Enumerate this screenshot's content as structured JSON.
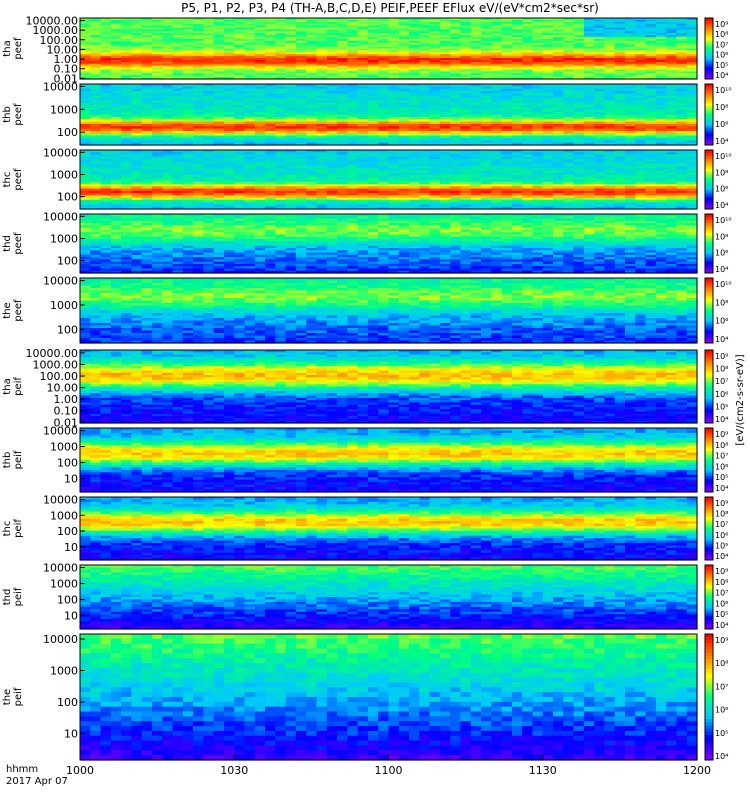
{
  "chart_data": {
    "type": "heatmap",
    "title": "P5, P1, P2, P3, P4 (TH-A,B,C,D,E) PEIF,PEEF EFlux eV/(eV*cm2*sec*sr)",
    "x_label_line1": "hhmm",
    "x_label_line2": "2017 Apr 07",
    "x_ticks": [
      "1000",
      "1030",
      "1100",
      "1130",
      "1200"
    ],
    "x_range": [
      0,
      120
    ],
    "colorbar_label": "[eV/(cm2-s-sr-eV)]",
    "colormap": [
      "#7f00ff",
      "#0000ff",
      "#00c8ff",
      "#00ff80",
      "#ffff00",
      "#ff8000",
      "#ff0000"
    ],
    "panels": [
      {
        "name_line1": "tha",
        "name_line2": "peef",
        "species": "electron",
        "y_ticks": [
          "10000.00",
          "1000.00",
          "100.00",
          "10.00",
          "1.00",
          "0.10",
          "0.01"
        ],
        "colorbar_ticks": [
          "10⁹",
          "10⁸",
          "10⁷",
          "10⁶",
          "10⁵",
          "10⁴"
        ]
      },
      {
        "name_line1": "thb",
        "name_line2": "peef",
        "species": "electron",
        "y_ticks": [
          "10000",
          "1000",
          "100"
        ],
        "colorbar_ticks": [
          "10¹⁰",
          "10⁸",
          "10⁶",
          "10⁴"
        ]
      },
      {
        "name_line1": "thc",
        "name_line2": "peef",
        "species": "electron",
        "y_ticks": [
          "10000",
          "1000",
          "100"
        ],
        "colorbar_ticks": [
          "10¹⁰",
          "10⁸",
          "10⁶",
          "10⁴"
        ]
      },
      {
        "name_line1": "thd",
        "name_line2": "peef",
        "species": "electron",
        "y_ticks": [
          "10000",
          "1000",
          "100"
        ],
        "colorbar_ticks": [
          "10¹⁰",
          "10⁸",
          "10⁶",
          "10⁴"
        ]
      },
      {
        "name_line1": "the",
        "name_line2": "peef",
        "species": "electron",
        "y_ticks": [
          "10000",
          "1000",
          "100"
        ],
        "colorbar_ticks": [
          "10¹⁰",
          "10⁸",
          "10⁶",
          "10⁴"
        ]
      },
      {
        "name_line1": "tha",
        "name_line2": "peif",
        "species": "ion",
        "y_ticks": [
          "10000.00",
          "1000.00",
          "100.00",
          "10.00",
          "1.00",
          "0.10",
          "0.01"
        ],
        "colorbar_ticks": [
          "10⁹",
          "10⁸",
          "10⁷",
          "10⁶",
          "10⁵",
          "10⁴"
        ]
      },
      {
        "name_line1": "thb",
        "name_line2": "peif",
        "species": "ion",
        "y_ticks": [
          "10000",
          "1000",
          "100",
          "10"
        ],
        "colorbar_ticks": [
          "10⁹",
          "10⁸",
          "10⁷",
          "10⁶",
          "10⁵",
          "10⁴"
        ]
      },
      {
        "name_line1": "thc",
        "name_line2": "peif",
        "species": "ion",
        "y_ticks": [
          "10000",
          "1000",
          "100",
          "10"
        ],
        "colorbar_ticks": [
          "10⁹",
          "10⁸",
          "10⁷",
          "10⁶",
          "10⁵",
          "10⁴"
        ]
      },
      {
        "name_line1": "thd",
        "name_line2": "peif",
        "species": "ion",
        "y_ticks": [
          "10000",
          "1000",
          "100",
          "10"
        ],
        "colorbar_ticks": [
          "10⁹",
          "10⁸",
          "10⁷",
          "10⁶",
          "10⁵",
          "10⁴"
        ]
      },
      {
        "name_line1": "the",
        "name_line2": "peif",
        "species": "ion",
        "y_ticks": [
          "10000",
          "1000",
          "100",
          "10"
        ],
        "colorbar_ticks": [
          "10⁹",
          "10⁸",
          "10⁷",
          "10⁶",
          "10⁵",
          "10⁴"
        ]
      }
    ]
  }
}
